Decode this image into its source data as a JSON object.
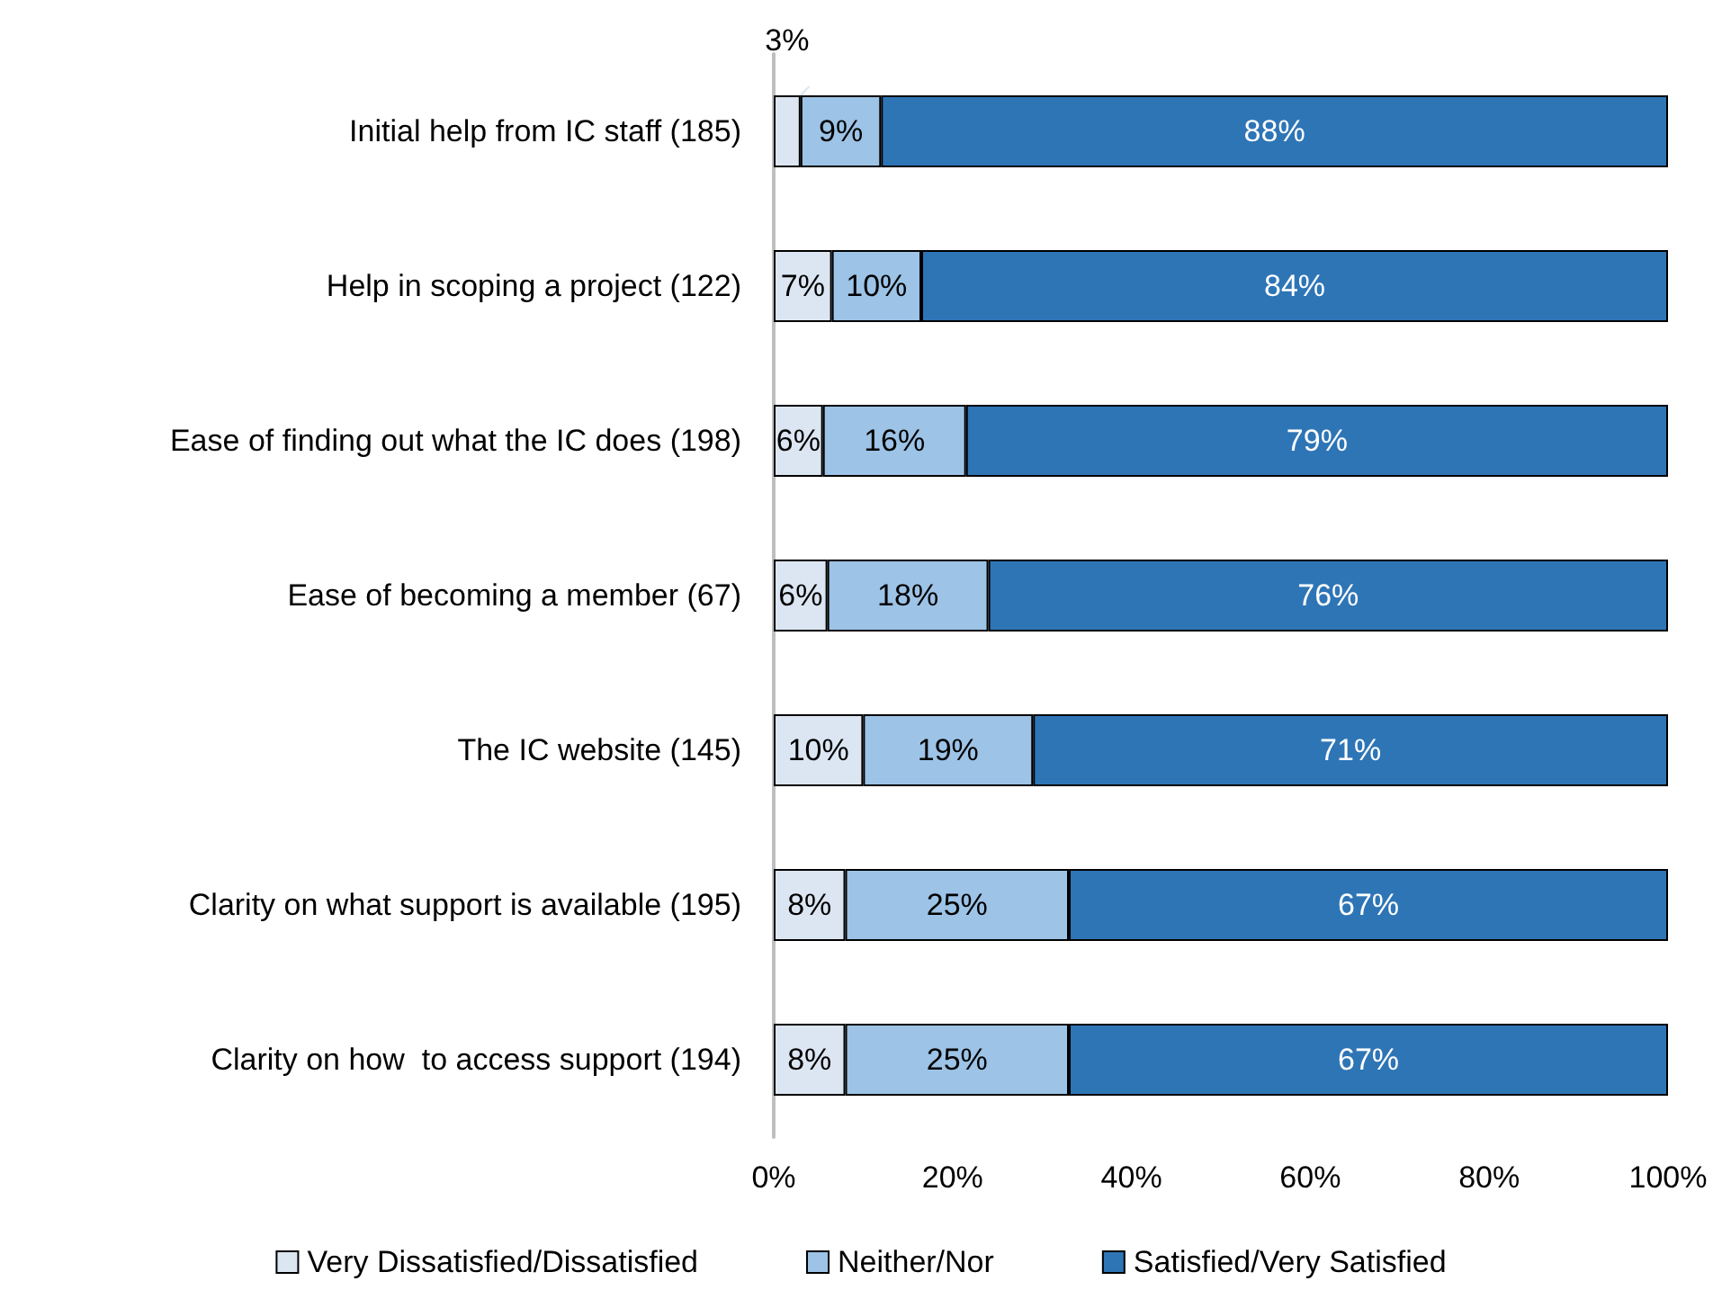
{
  "chart_data": {
    "type": "bar",
    "orientation": "horizontal",
    "stacked": true,
    "legend": "bottom",
    "grid": false,
    "categories": [
      "Initial help from IC staff (185)",
      "Help in scoping a project (122)",
      "Ease of finding out what the IC does (198)",
      "Ease of becoming a member (67)",
      "The IC website (145)",
      "Clarity on what support is available (195)",
      "Clarity on how  to access support (194)"
    ],
    "series": [
      {
        "name": "Very Dissatisfied/Dissatisfied",
        "color": "#dce6f2",
        "values": [
          3,
          6.5,
          5.5,
          6,
          10,
          8,
          8
        ],
        "value_labels": [
          "3%",
          "7%",
          "6%",
          "6%",
          "10%",
          "8%",
          "8%"
        ]
      },
      {
        "name": "Neither/Nor",
        "color": "#9dc3e6",
        "values": [
          9,
          10,
          16,
          18,
          19,
          25,
          25
        ],
        "value_labels": [
          "9%",
          "10%",
          "16%",
          "18%",
          "19%",
          "25%",
          "25%"
        ]
      },
      {
        "name": "Satisfied/Very Satisfied",
        "color": "#2e75b6",
        "values": [
          88,
          83.5,
          78.5,
          76,
          71,
          67,
          67
        ],
        "value_labels": [
          "88%",
          "84%",
          "79%",
          "76%",
          "71%",
          "67%",
          "67%"
        ]
      }
    ],
    "xlim": [
      0,
      100
    ],
    "xticks": [
      {
        "value": 0,
        "label": "0%"
      },
      {
        "value": 20,
        "label": "20%"
      },
      {
        "value": 40,
        "label": "40%"
      },
      {
        "value": 60,
        "label": "60%"
      },
      {
        "value": 80,
        "label": "80%"
      },
      {
        "value": 100,
        "label": "100%"
      }
    ]
  }
}
